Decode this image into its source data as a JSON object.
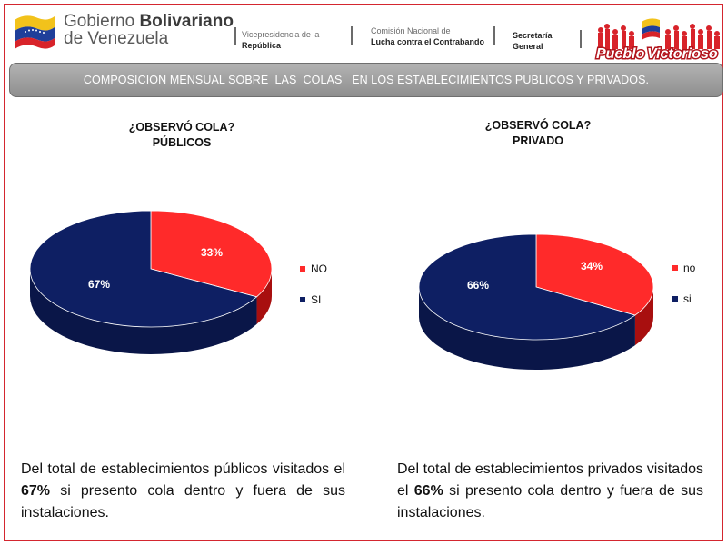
{
  "header": {
    "gov_line1_regular": "Gobierno ",
    "gov_line1_bold": "Bolivariano",
    "gov_line2": "de Venezuela",
    "vice_line1": "Vicepresidencia de la",
    "vice_line2": "República",
    "comision_line1": "Comisión Nacional de",
    "comision_line2": "Lucha contra el Contrabando",
    "secretaria_line1": "Secretaría",
    "secretaria_line2": "General",
    "logo_text_1": "Pueblo",
    "logo_text_2": "Victorioso"
  },
  "banner": "COMPOSICION MENSUAL SOBRE  LAS  COLAS   EN LOS ESTABLECIMIENTOS PUBLICOS Y PRIVADOS.",
  "colors": {
    "red": "#ff2a2a",
    "red_dark": "#a80f0f",
    "blue": "#0e1f63",
    "blue_dark": "#0a1648",
    "frame": "#d4262f"
  },
  "chart_data": [
    {
      "type": "pie",
      "title_line1": "¿OBSERVÓ COLA?",
      "title_line2": "PÚBLICOS",
      "slices": [
        {
          "label": "NO",
          "value": 33,
          "display": "33%",
          "color": "#ff2a2a"
        },
        {
          "label": "SI",
          "value": 67,
          "display": "67%",
          "color": "#0e1f63"
        }
      ],
      "legend_position": "right"
    },
    {
      "type": "pie",
      "title_line1": "¿OBSERVÓ COLA?",
      "title_line2": "PRIVADO",
      "slices": [
        {
          "label": "no",
          "value": 34,
          "display": "34%",
          "color": "#ff2a2a"
        },
        {
          "label": "si",
          "value": 66,
          "display": "66%",
          "color": "#0e1f63"
        }
      ],
      "legend_position": "right"
    }
  ],
  "notes": [
    {
      "pre": "Del total de establecimientos públicos visitados el ",
      "bold": "67%",
      "post": " si presento cola dentro y fuera de sus instalaciones."
    },
    {
      "pre": "Del total de establecimientos privados visitados el ",
      "bold": "66%",
      "post": " si presento cola dentro y fuera de sus instalaciones."
    }
  ]
}
